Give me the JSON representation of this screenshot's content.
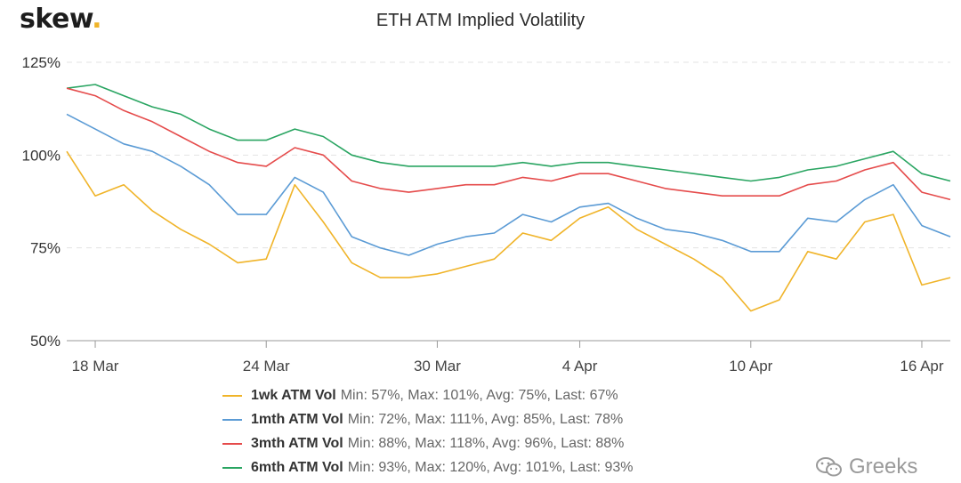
{
  "brand": {
    "name": "skew",
    "dot": "."
  },
  "watermark": {
    "text": "Greeks",
    "icon": "wechat-icon"
  },
  "colors": {
    "grid": "#e3e3e3",
    "axis": "#999999"
  },
  "chart_data": {
    "type": "line",
    "title": "ETH ATM Implied Volatility",
    "xlabel": "",
    "ylabel": "",
    "yticks": [
      "50%",
      "75%",
      "100%",
      "125%"
    ],
    "ylim": [
      50,
      125
    ],
    "xticks": [
      "18 Mar",
      "24 Mar",
      "30 Mar",
      "4 Apr",
      "10 Apr",
      "16 Apr"
    ],
    "xlim": [
      "2020-03-17",
      "2020-04-17"
    ],
    "grid": "horizontal dashed",
    "legend_position": "bottom",
    "x": [
      "2020-03-17",
      "2020-03-18",
      "2020-03-19",
      "2020-03-20",
      "2020-03-21",
      "2020-03-22",
      "2020-03-23",
      "2020-03-24",
      "2020-03-25",
      "2020-03-26",
      "2020-03-27",
      "2020-03-28",
      "2020-03-29",
      "2020-03-30",
      "2020-03-31",
      "2020-04-01",
      "2020-04-02",
      "2020-04-03",
      "2020-04-04",
      "2020-04-05",
      "2020-04-06",
      "2020-04-07",
      "2020-04-08",
      "2020-04-09",
      "2020-04-10",
      "2020-04-11",
      "2020-04-12",
      "2020-04-13",
      "2020-04-14",
      "2020-04-15",
      "2020-04-16",
      "2020-04-17"
    ],
    "series": [
      {
        "name": "1wk ATM Vol",
        "stats": "Min: 57%, Max: 101%, Avg: 75%, Last: 67%",
        "color": "#f0b429",
        "values": [
          101,
          89,
          92,
          85,
          80,
          76,
          71,
          72,
          92,
          82,
          71,
          67,
          67,
          68,
          70,
          72,
          79,
          77,
          83,
          86,
          80,
          76,
          72,
          67,
          58,
          61,
          74,
          72,
          82,
          84,
          65,
          67
        ]
      },
      {
        "name": "1mth ATM Vol",
        "stats": "Min: 72%, Max: 111%, Avg: 85%, Last: 78%",
        "color": "#5b9bd5",
        "values": [
          111,
          107,
          103,
          101,
          97,
          92,
          84,
          84,
          94,
          90,
          78,
          75,
          73,
          76,
          78,
          79,
          84,
          82,
          86,
          87,
          83,
          80,
          79,
          77,
          74,
          74,
          83,
          82,
          88,
          92,
          81,
          78
        ]
      },
      {
        "name": "3mth ATM Vol",
        "stats": "Min: 88%, Max: 118%, Avg: 96%, Last: 88%",
        "color": "#e54b4b",
        "values": [
          118,
          116,
          112,
          109,
          105,
          101,
          98,
          97,
          102,
          100,
          93,
          91,
          90,
          91,
          92,
          92,
          94,
          93,
          95,
          95,
          93,
          91,
          90,
          89,
          89,
          89,
          92,
          93,
          96,
          98,
          90,
          88
        ]
      },
      {
        "name": "6mth ATM Vol",
        "stats": "Min: 93%, Max: 120%, Avg: 101%, Last: 93%",
        "color": "#2aa562",
        "values": [
          118,
          119,
          116,
          113,
          111,
          107,
          104,
          104,
          107,
          105,
          100,
          98,
          97,
          97,
          97,
          97,
          98,
          97,
          98,
          98,
          97,
          96,
          95,
          94,
          93,
          94,
          96,
          97,
          99,
          101,
          95,
          93
        ]
      }
    ]
  }
}
